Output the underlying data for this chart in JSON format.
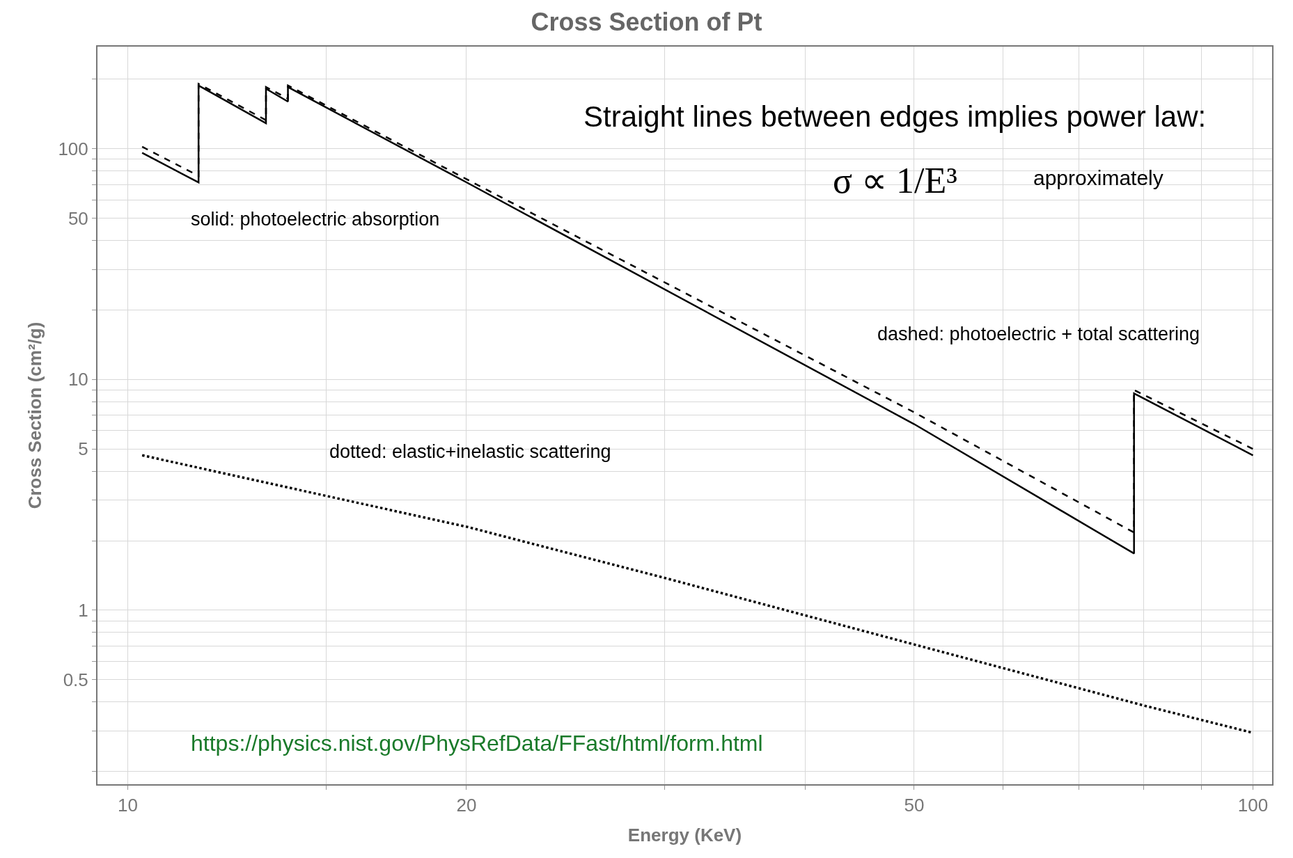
{
  "chart_data": {
    "type": "line",
    "title": "Cross Section of Pt",
    "xlabel": "Energy (KeV)",
    "ylabel": "Cross Section (cm²/g)",
    "log": "xy",
    "grid": true,
    "xlim": [
      9.4,
      104
    ],
    "ylim": [
      0.176,
      277
    ],
    "xticks": [
      10,
      {
        "value": 15,
        "label": null
      },
      20,
      {
        "value": 30,
        "label": null
      },
      {
        "value": 40,
        "label": null
      },
      50,
      {
        "value": 60,
        "label": null
      },
      {
        "value": 70,
        "label": null
      },
      {
        "value": 80,
        "label": null
      },
      {
        "value": 90,
        "label": null
      },
      100
    ],
    "yticks": [
      {
        "value": 0.2,
        "label": null
      },
      {
        "value": 0.3,
        "label": null
      },
      {
        "value": 0.4,
        "label": null
      },
      0.5,
      {
        "value": 0.6,
        "label": null
      },
      {
        "value": 0.7,
        "label": null
      },
      {
        "value": 0.8,
        "label": null
      },
      {
        "value": 0.9,
        "label": null
      },
      1,
      {
        "value": 2,
        "label": null
      },
      {
        "value": 3,
        "label": null
      },
      {
        "value": 4,
        "label": null
      },
      5,
      {
        "value": 6,
        "label": null
      },
      {
        "value": 7,
        "label": null
      },
      {
        "value": 8,
        "label": null
      },
      {
        "value": 9,
        "label": null
      },
      10,
      {
        "value": 20,
        "label": null
      },
      {
        "value": 30,
        "label": null
      },
      {
        "value": 40,
        "label": null
      },
      50,
      {
        "value": 60,
        "label": null
      },
      {
        "value": 70,
        "label": null
      },
      {
        "value": 80,
        "label": null
      },
      {
        "value": 90,
        "label": null
      },
      100,
      {
        "value": 200,
        "label": null
      }
    ],
    "series": [
      {
        "color": "#000000",
        "line_style": "solid",
        "x": [
          10.3,
          11.56,
          11.56,
          13.27,
          13.27,
          13.88,
          13.88,
          20,
          50,
          78.4,
          78.4,
          100
        ],
        "values": [
          96,
          71.4,
          188,
          129,
          182,
          160,
          185,
          71.5,
          6.4,
          1.76,
          8.7,
          4.69
        ]
      },
      {
        "color": "#000000",
        "line_style": "dashed",
        "x": [
          10.3,
          11.56,
          11.56,
          13.27,
          13.27,
          13.88,
          13.88,
          20,
          50,
          78.4,
          78.4,
          100
        ],
        "values": [
          102,
          76.3,
          191,
          133,
          185,
          165,
          188,
          73.8,
          7.2,
          2.17,
          9.0,
          5.0
        ]
      },
      {
        "color": "#000000",
        "line_style": "dotted",
        "x": [
          10.3,
          15,
          20,
          30,
          50,
          80,
          100
        ],
        "values": [
          4.69,
          3.13,
          2.3,
          1.38,
          0.71,
          0.386,
          0.294
        ]
      }
    ],
    "annotations": [
      "Straight lines between edges implies power law:",
      "σ ∝ 1/E³",
      "approximately",
      "solid: photoelectric absorption",
      "dashed: photoelectric + total scattering",
      "dotted: elastic+inelastic scattering",
      "https://physics.nist.gov/PhysRefData/FFast/html/form.html"
    ]
  }
}
